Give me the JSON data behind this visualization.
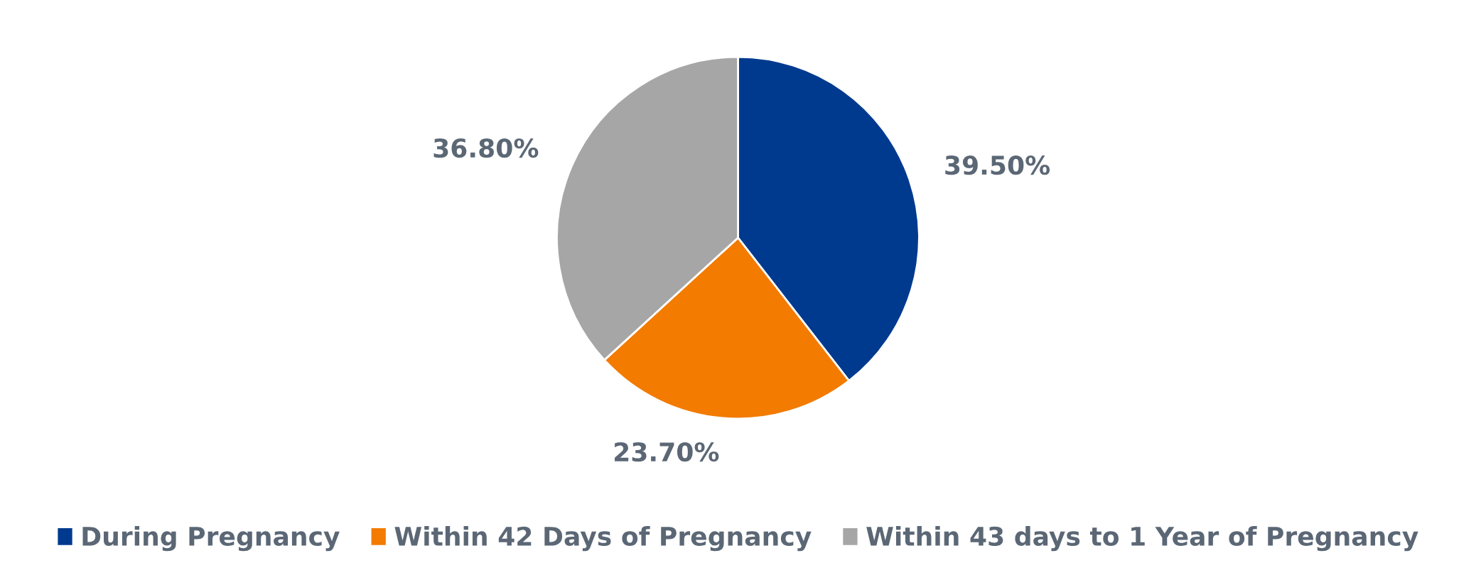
{
  "chart_data": {
    "type": "pie",
    "categories": [
      "During Pregnancy",
      "Within 42 Days of Pregnancy",
      "Within 43 days to 1 Year of Pregnancy"
    ],
    "values": [
      39.5,
      23.7,
      36.8
    ],
    "colors": [
      "#003a8f",
      "#f27b00",
      "#a6a6a6"
    ],
    "value_labels": [
      "39.50%",
      "23.70%",
      "36.80%"
    ],
    "legend": "bottom"
  }
}
